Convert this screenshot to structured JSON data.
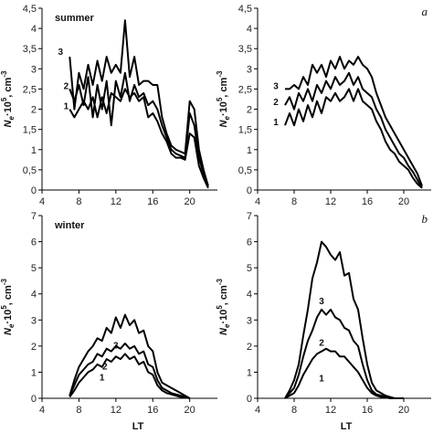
{
  "figure": {
    "x_axis_title": "LT",
    "y_axis_title": "Ne·10^5, cm^-3"
  },
  "chart_data": [
    {
      "id": "summer-left",
      "type": "line",
      "season_label": "summer",
      "panel_letter": "",
      "xlim": [
        4,
        23
      ],
      "ylim": [
        0,
        4.5
      ],
      "xticks": [
        4,
        8,
        12,
        16,
        20
      ],
      "yticks": [
        "0",
        "0,5",
        "1",
        "1,5",
        "2",
        "2,5",
        "3",
        "3,5",
        "4",
        "4,5"
      ],
      "ytick_values": [
        0,
        0.5,
        1,
        1.5,
        2,
        2.5,
        3,
        3.5,
        4,
        4.5
      ],
      "series": [
        {
          "name": "1",
          "x": [
            7,
            7.5,
            8,
            8.5,
            9,
            9.5,
            10,
            10.5,
            11,
            11.5,
            12,
            12.5,
            13,
            13.5,
            14,
            14.5,
            15,
            15.5,
            16,
            16.5,
            17,
            17.5,
            18,
            18.5,
            19,
            19.5,
            20,
            20.5,
            21,
            21.5,
            22
          ],
          "y": [
            2,
            1.8,
            2,
            2.2,
            2.0,
            2.3,
            1.8,
            2.3,
            1.9,
            2.4,
            2.3,
            2.2,
            2.5,
            2.3,
            2.4,
            2.2,
            2.3,
            1.8,
            1.9,
            1.7,
            1.4,
            1.2,
            0.9,
            0.8,
            0.8,
            0.75,
            1.4,
            1.3,
            0.6,
            0.3,
            0.05
          ]
        },
        {
          "name": "2",
          "x": [
            7,
            7.5,
            8,
            8.5,
            9,
            9.5,
            10,
            10.5,
            11,
            11.5,
            12,
            12.5,
            13,
            13.5,
            14,
            14.5,
            15,
            15.5,
            16,
            16.5,
            17,
            17.5,
            18,
            18.5,
            19,
            19.5,
            20,
            20.5,
            21,
            21.5,
            22
          ],
          "y": [
            2.5,
            2.2,
            2.6,
            2.1,
            2.8,
            1.8,
            2.6,
            2.0,
            2.7,
            1.6,
            2.7,
            2.3,
            2.9,
            2.2,
            2.6,
            2.3,
            2.4,
            2.1,
            2.2,
            2.0,
            1.6,
            1.3,
            1.0,
            0.9,
            0.85,
            0.8,
            1.9,
            1.6,
            0.8,
            0.4,
            0.1
          ]
        },
        {
          "name": "3",
          "x": [
            7,
            7.5,
            8,
            8.5,
            9,
            9.5,
            10,
            10.5,
            11,
            11.5,
            12,
            12.5,
            13,
            13.5,
            14,
            14.5,
            15,
            15.5,
            16,
            16.5,
            17,
            17.5,
            18,
            18.5,
            19,
            19.5,
            20,
            20.5,
            21,
            21.5,
            22
          ],
          "y": [
            3.3,
            2.0,
            2.9,
            2.5,
            3.1,
            2.6,
            3.2,
            2.7,
            3.3,
            2.9,
            3.1,
            2.9,
            4.2,
            2.8,
            3.3,
            2.6,
            2.7,
            2.7,
            2.6,
            2.6,
            1.8,
            1.4,
            1.1,
            1.0,
            0.95,
            0.9,
            2.2,
            2.0,
            1.0,
            0.5,
            0.1
          ]
        }
      ]
    },
    {
      "id": "summer-right",
      "type": "line",
      "season_label": "",
      "panel_letter": "a",
      "xlim": [
        4,
        23
      ],
      "ylim": [
        0,
        4.5
      ],
      "xticks": [
        4,
        8,
        12,
        16,
        20
      ],
      "yticks": [
        "0",
        "0,5",
        "1",
        "1,5",
        "2",
        "2,5",
        "3",
        "3,5",
        "4",
        "4,5"
      ],
      "ytick_values": [
        0,
        0.5,
        1,
        1.5,
        2,
        2.5,
        3,
        3.5,
        4,
        4.5
      ],
      "series": [
        {
          "name": "1",
          "x": [
            7,
            7.5,
            8,
            8.5,
            9,
            9.5,
            10,
            10.5,
            11,
            11.5,
            12,
            12.5,
            13,
            13.5,
            14,
            14.5,
            15,
            15.5,
            16,
            16.5,
            17,
            17.5,
            18,
            18.5,
            19,
            19.5,
            20,
            20.5,
            21,
            21.5,
            22
          ],
          "y": [
            1.6,
            1.9,
            1.6,
            2.0,
            1.7,
            2.1,
            1.8,
            2.2,
            1.9,
            2.3,
            2.2,
            2.4,
            2.2,
            2.3,
            2.5,
            2.2,
            2.5,
            2.2,
            2.1,
            2.0,
            1.7,
            1.5,
            1.2,
            1.0,
            0.9,
            0.7,
            0.6,
            0.5,
            0.3,
            0.15,
            0.05
          ]
        },
        {
          "name": "2",
          "x": [
            7,
            7.5,
            8,
            8.5,
            9,
            9.5,
            10,
            10.5,
            11,
            11.5,
            12,
            12.5,
            13,
            13.5,
            14,
            14.5,
            15,
            15.5,
            16,
            16.5,
            17,
            17.5,
            18,
            18.5,
            19,
            19.5,
            20,
            20.5,
            21,
            21.5,
            22
          ],
          "y": [
            2.1,
            2.3,
            2.0,
            2.4,
            2.2,
            2.5,
            2.2,
            2.6,
            2.4,
            2.7,
            2.5,
            2.8,
            2.6,
            2.7,
            2.9,
            2.6,
            2.8,
            2.5,
            2.4,
            2.3,
            2.0,
            1.8,
            1.5,
            1.3,
            1.1,
            0.9,
            0.8,
            0.6,
            0.45,
            0.25,
            0.05
          ]
        },
        {
          "name": "3",
          "x": [
            7,
            7.5,
            8,
            8.5,
            9,
            9.5,
            10,
            10.5,
            11,
            11.5,
            12,
            12.5,
            13,
            13.5,
            14,
            14.5,
            15,
            15.5,
            16,
            16.5,
            17,
            17.5,
            18,
            18.5,
            19,
            19.5,
            20,
            20.5,
            21,
            21.5,
            22
          ],
          "y": [
            2.5,
            2.5,
            2.6,
            2.5,
            2.8,
            2.6,
            3.1,
            2.9,
            3.1,
            2.8,
            3.2,
            3.0,
            3.3,
            3.0,
            3.2,
            3.1,
            3.3,
            3.1,
            3.0,
            2.8,
            2.4,
            2.1,
            1.8,
            1.6,
            1.4,
            1.2,
            1.0,
            0.8,
            0.6,
            0.4,
            0.1
          ]
        }
      ]
    },
    {
      "id": "winter-left",
      "type": "line",
      "season_label": "winter",
      "panel_letter": "",
      "xlim": [
        4,
        23
      ],
      "ylim": [
        0,
        7
      ],
      "xticks": [
        4,
        8,
        12,
        16,
        20
      ],
      "yticks": [
        "0",
        "1",
        "2",
        "3",
        "4",
        "5",
        "6",
        "7"
      ],
      "ytick_values": [
        0,
        1,
        2,
        3,
        4,
        5,
        6,
        7
      ],
      "series": [
        {
          "name": "1",
          "x": [
            7,
            7.5,
            8,
            8.5,
            9,
            9.5,
            10,
            10.5,
            11,
            11.5,
            12,
            12.5,
            13,
            13.5,
            14,
            14.5,
            15,
            15.5,
            16,
            16.5,
            17,
            17.5,
            18,
            18.5,
            19,
            19.5,
            20
          ],
          "y": [
            0.05,
            0.3,
            0.6,
            0.8,
            1.0,
            1.1,
            1.3,
            1.2,
            1.5,
            1.4,
            1.6,
            1.5,
            1.7,
            1.5,
            1.6,
            1.3,
            1.4,
            1.0,
            0.9,
            0.5,
            0.3,
            0.2,
            0.15,
            0.1,
            0.05,
            0.05,
            0
          ]
        },
        {
          "name": "2",
          "x": [
            7,
            7.5,
            8,
            8.5,
            9,
            9.5,
            10,
            10.5,
            11,
            11.5,
            12,
            12.5,
            13,
            13.5,
            14,
            14.5,
            15,
            15.5,
            16,
            16.5,
            17,
            17.5,
            18,
            18.5,
            19,
            19.5,
            20
          ],
          "y": [
            0.1,
            0.5,
            0.9,
            1.1,
            1.3,
            1.4,
            1.7,
            1.6,
            1.9,
            1.8,
            2.0,
            1.9,
            2.1,
            1.9,
            2.0,
            1.7,
            1.8,
            1.3,
            1.2,
            0.7,
            0.4,
            0.3,
            0.2,
            0.15,
            0.1,
            0.05,
            0
          ]
        },
        {
          "name": "3",
          "x": [
            7,
            7.5,
            8,
            8.5,
            9,
            9.5,
            10,
            10.5,
            11,
            11.5,
            12,
            12.5,
            13,
            13.5,
            14,
            14.5,
            15,
            15.5,
            16,
            16.5,
            17,
            17.5,
            18,
            18.5,
            19,
            19.5,
            20
          ],
          "y": [
            0.1,
            0.7,
            1.2,
            1.5,
            1.8,
            2.0,
            2.3,
            2.2,
            2.7,
            2.5,
            3.1,
            2.7,
            3.2,
            2.8,
            3.0,
            2.5,
            2.6,
            2.0,
            1.8,
            1.0,
            0.6,
            0.5,
            0.4,
            0.3,
            0.2,
            0.1,
            0
          ]
        }
      ]
    },
    {
      "id": "winter-right",
      "type": "line",
      "season_label": "",
      "panel_letter": "b",
      "xlim": [
        4,
        23
      ],
      "ylim": [
        0,
        7
      ],
      "xticks": [
        4,
        8,
        12,
        16,
        20
      ],
      "yticks": [
        "0",
        "1",
        "2",
        "3",
        "4",
        "5",
        "6",
        "7"
      ],
      "ytick_values": [
        0,
        1,
        2,
        3,
        4,
        5,
        6,
        7
      ],
      "series": [
        {
          "name": "1",
          "x": [
            7,
            7.5,
            8,
            8.5,
            9,
            9.5,
            10,
            10.5,
            11,
            11.5,
            12,
            12.5,
            13,
            13.5,
            14,
            14.5,
            15,
            15.5,
            16,
            16.5,
            17,
            17.5,
            18,
            18.5,
            19,
            19.5,
            20
          ],
          "y": [
            0,
            0.1,
            0.2,
            0.5,
            0.9,
            1.2,
            1.5,
            1.7,
            1.8,
            1.9,
            1.8,
            1.8,
            1.6,
            1.6,
            1.4,
            1.2,
            1.0,
            0.7,
            0.4,
            0.2,
            0.1,
            0.05,
            0.05,
            0,
            0,
            0,
            0
          ]
        },
        {
          "name": "2",
          "x": [
            7,
            7.5,
            8,
            8.5,
            9,
            9.5,
            10,
            10.5,
            11,
            11.5,
            12,
            12.5,
            13,
            13.5,
            14,
            14.5,
            15,
            15.5,
            16,
            16.5,
            17,
            17.5,
            18,
            18.5,
            19,
            19.5,
            20
          ],
          "y": [
            0,
            0.2,
            0.4,
            0.9,
            1.6,
            2.2,
            2.6,
            3.1,
            3.4,
            3.2,
            3.4,
            3.1,
            3.0,
            2.7,
            2.6,
            2.2,
            2.0,
            1.3,
            0.7,
            0.3,
            0.15,
            0.1,
            0.05,
            0,
            0,
            0,
            0
          ]
        },
        {
          "name": "3",
          "x": [
            7,
            7.5,
            8,
            8.5,
            9,
            9.5,
            10,
            10.5,
            11,
            11.5,
            12,
            12.5,
            13,
            13.5,
            14,
            14.5,
            15,
            15.5,
            16,
            16.5,
            17,
            17.5,
            18,
            18.5,
            19,
            19.5,
            20
          ],
          "y": [
            0,
            0.3,
            0.7,
            1.3,
            2.4,
            3.4,
            4.6,
            5.2,
            6.0,
            5.8,
            5.5,
            5.3,
            5.6,
            4.7,
            4.8,
            3.8,
            3.4,
            2.3,
            1.3,
            0.6,
            0.3,
            0.2,
            0.1,
            0.05,
            0,
            0,
            0
          ]
        }
      ]
    }
  ]
}
